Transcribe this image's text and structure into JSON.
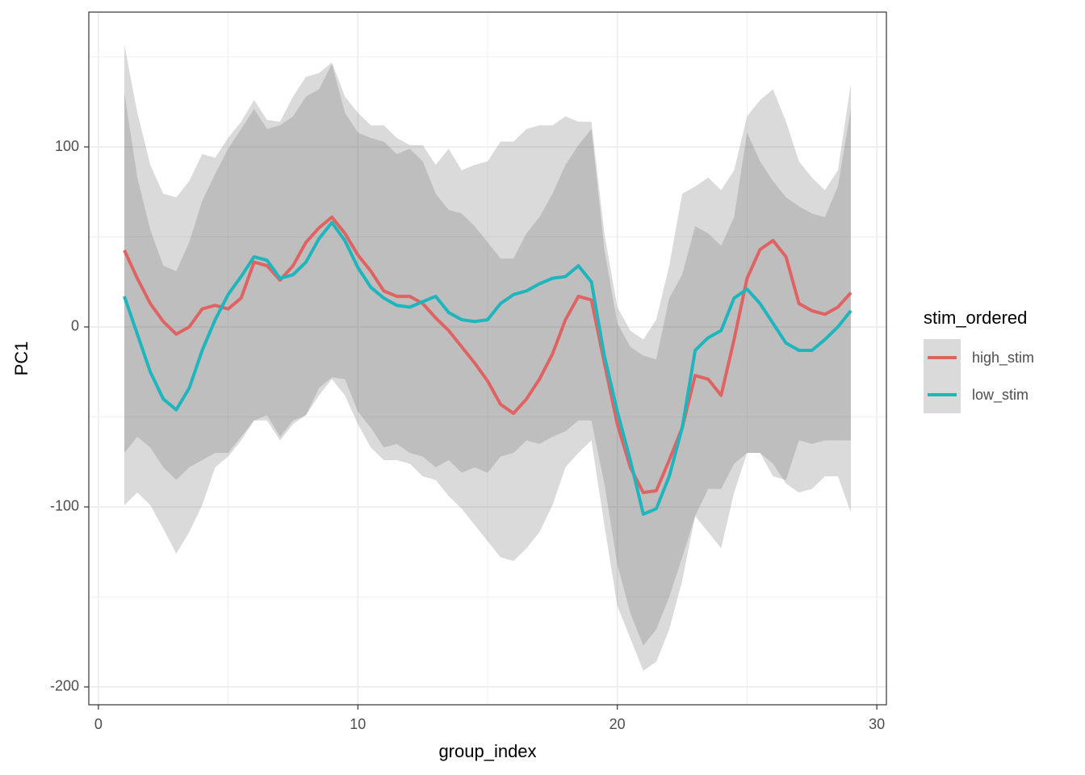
{
  "chart_data": {
    "type": "line",
    "x_label": "group_index",
    "y_label": "PC1",
    "legend_title": "stim_ordered",
    "x": [
      1,
      1.5,
      2,
      2.5,
      3,
      3.5,
      4,
      4.5,
      5,
      5.5,
      6,
      6.5,
      7,
      7.5,
      8,
      8.5,
      9,
      9.5,
      10,
      10.5,
      11,
      11.5,
      12,
      12.5,
      13,
      13.5,
      14,
      14.5,
      15,
      15.5,
      16,
      16.5,
      17,
      17.5,
      18,
      18.5,
      19,
      19.5,
      20,
      20.5,
      21,
      21.5,
      22,
      22.5,
      23,
      23.5,
      24,
      24.5,
      25,
      25.5,
      26,
      26.5,
      27,
      27.5,
      28,
      28.5,
      29
    ],
    "series": [
      {
        "name": "high_stim",
        "color": "#e06363",
        "values": [
          42.6,
          27,
          13,
          3,
          -4,
          0,
          10,
          12,
          10,
          16,
          36,
          34,
          26,
          34,
          47,
          55,
          61,
          52,
          40,
          31,
          20,
          17,
          17,
          13,
          5,
          -2,
          -11,
          -20,
          -30,
          -43,
          -48,
          -40,
          -29,
          -15,
          4,
          17,
          15,
          -20,
          -54,
          -78,
          -92,
          -91,
          -74,
          -56,
          -27,
          -29,
          -38,
          -7,
          27,
          43,
          48,
          39,
          13,
          9,
          7,
          11,
          19
        ],
        "upper": [
          157,
          119,
          90,
          74,
          72,
          81,
          96,
          94,
          105,
          114,
          126,
          115,
          114,
          128,
          139,
          141,
          147,
          128,
          119,
          112,
          112,
          105,
          101,
          101,
          90,
          99,
          87,
          90,
          92,
          103,
          103,
          110,
          112,
          112,
          117,
          114,
          114,
          52,
          11,
          -2,
          -7,
          4,
          34,
          74,
          78,
          83,
          76,
          87,
          117,
          126,
          132,
          114,
          92,
          83,
          76,
          87,
          135
        ],
        "lower": [
          -70,
          -61,
          -67,
          -78,
          -85,
          -78,
          -74,
          -70,
          -70,
          -61,
          -52,
          -49,
          -61,
          -52,
          -49,
          -34,
          -28,
          -29,
          -47,
          -56,
          -67,
          -65,
          -70,
          -72,
          -78,
          -74,
          -81,
          -78,
          -81,
          -72,
          -70,
          -63,
          -65,
          -61,
          -58,
          -52,
          -52,
          -87,
          -132,
          -159,
          -177,
          -168,
          -150,
          -128,
          -105,
          -90,
          -90,
          -76,
          -70,
          -70,
          -83,
          -85,
          -63,
          -65,
          -63,
          -63,
          -63
        ]
      },
      {
        "name": "low_stim",
        "color": "#1fb5bd",
        "values": [
          17,
          -4,
          -25,
          -40,
          -46,
          -34,
          -13,
          4,
          18,
          28,
          39,
          37,
          27,
          29,
          36,
          49,
          58,
          48,
          33,
          22,
          16,
          12,
          11,
          14,
          17,
          8,
          4,
          3,
          4,
          13,
          18,
          20,
          24,
          27,
          28,
          34,
          25,
          -16,
          -47,
          -74,
          -104,
          -101,
          -83,
          -56,
          -13,
          -6,
          -2,
          16,
          21,
          13,
          2,
          -9,
          -13,
          -13,
          -7,
          0,
          9
        ],
        "upper": [
          130,
          83,
          54,
          34,
          31,
          47,
          70,
          85,
          99,
          110,
          121,
          110,
          112,
          117,
          128,
          132,
          146,
          119,
          108,
          105,
          103,
          96,
          99,
          92,
          74,
          65,
          63,
          56,
          47,
          38,
          38,
          52,
          61,
          74,
          90,
          101,
          110,
          43,
          2,
          -11,
          -16,
          -18,
          16,
          29,
          56,
          52,
          45,
          61,
          108,
          92,
          81,
          72,
          67,
          63,
          61,
          78,
          121
        ],
        "lower": [
          -99,
          -92,
          -99,
          -112,
          -126,
          -114,
          -99,
          -78,
          -72,
          -63,
          -52,
          -52,
          -63,
          -54,
          -49,
          -38,
          -29,
          -38,
          -54,
          -67,
          -74,
          -74,
          -76,
          -83,
          -85,
          -94,
          -101,
          -110,
          -119,
          -128,
          -130,
          -123,
          -114,
          -99,
          -78,
          -70,
          -63,
          -110,
          -155,
          -173,
          -191,
          -186,
          -168,
          -141,
          -105,
          -114,
          -123,
          -92,
          -70,
          -70,
          -76,
          -87,
          -92,
          -90,
          -83,
          -83,
          -103
        ]
      }
    ],
    "ribbon_color": "#656565",
    "xlim": [
      -0.37,
      30.37
    ],
    "ylim": [
      -209.9,
      174.9
    ],
    "xticks": [
      0,
      10,
      20,
      30
    ],
    "yticks": [
      -200,
      -100,
      0,
      100
    ],
    "xminor": [
      5,
      15,
      25
    ],
    "yminor": [
      -150,
      -50,
      50,
      150
    ],
    "grid": true,
    "legend": "right"
  }
}
